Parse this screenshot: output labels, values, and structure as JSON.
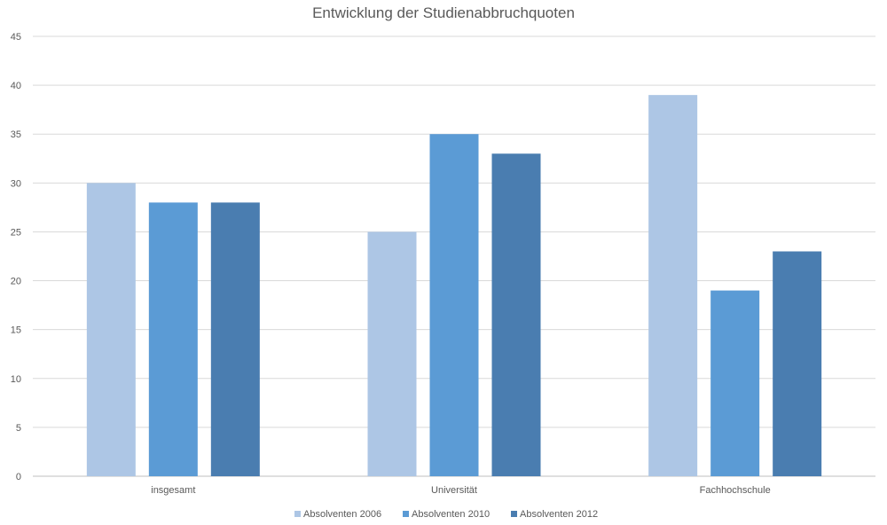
{
  "chart_data": {
    "type": "bar",
    "title": "Entwicklung der Studienabbruchquoten",
    "xlabel": "",
    "ylabel": "",
    "ylim": [
      0,
      45
    ],
    "ystep": 5,
    "grid": true,
    "legend_position": "bottom",
    "categories": [
      "insgesamt",
      "Universität",
      "Fachhochschule"
    ],
    "series": [
      {
        "name": "Absolventen 2006",
        "color": "#adc6e5",
        "values": [
          30,
          25,
          39
        ]
      },
      {
        "name": "Absolventen 2010",
        "color": "#5b9bd5",
        "values": [
          28,
          35,
          19
        ]
      },
      {
        "name": "Absolventen 2012",
        "color": "#4a7db0",
        "values": [
          28,
          33,
          23
        ]
      }
    ]
  }
}
